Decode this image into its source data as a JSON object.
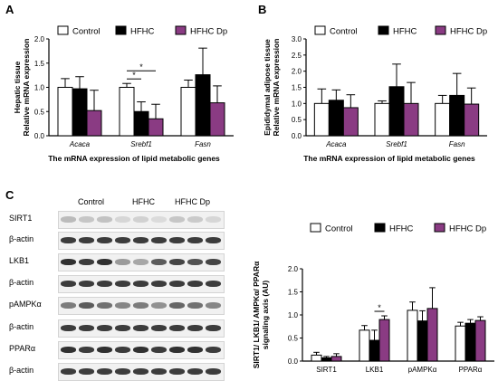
{
  "colors": {
    "control": "#ffffff",
    "hfhc": "#000000",
    "hfhc_dp": "#8a3b83",
    "blot_band": "#1c1c1c"
  },
  "panel_letters": {
    "a": "A",
    "b": "B",
    "c": "C"
  },
  "chart_data": [
    {
      "type": "bar",
      "panel": "A",
      "ylabel_line1": "Hepatic tissue",
      "ylabel_line2": "Relative mRNA expression",
      "xlabel": "The mRNA expression of lipid metabolic genes",
      "categories": [
        "Acaca",
        "Srebf1",
        "Fasn"
      ],
      "ylim": [
        0,
        2.0
      ],
      "yticks": [
        "0.0",
        "0.5",
        "1.0",
        "1.5",
        "2.0"
      ],
      "series": [
        {
          "name": "Control",
          "values": [
            1.0,
            1.0,
            1.0
          ],
          "errors": [
            0.18,
            0.08,
            0.15
          ]
        },
        {
          "name": "HFHC",
          "values": [
            0.97,
            0.5,
            1.26
          ],
          "errors": [
            0.25,
            0.2,
            0.55
          ]
        },
        {
          "name": "HFHC Dp",
          "values": [
            0.52,
            0.35,
            0.68
          ],
          "errors": [
            0.42,
            0.3,
            0.35
          ]
        }
      ],
      "significance": [
        {
          "category": "Srebf1",
          "from": "Control",
          "to": "HFHC",
          "label": "*"
        },
        {
          "category": "Srebf1",
          "from": "Control",
          "to": "HFHC Dp",
          "label": "*"
        }
      ]
    },
    {
      "type": "bar",
      "panel": "B",
      "ylabel_line1": "Epididymal adipose tissue",
      "ylabel_line2": "Relative mRNA expression",
      "xlabel": "The mRNA expression of lipid metabolic genes",
      "categories": [
        "Acaca",
        "Srebf1",
        "Fasn"
      ],
      "ylim": [
        0,
        3.0
      ],
      "yticks": [
        "0.0",
        "0.5",
        "1.0",
        "1.5",
        "2.0",
        "2.5",
        "3.0"
      ],
      "series": [
        {
          "name": "Control",
          "values": [
            1.0,
            1.0,
            1.0
          ],
          "errors": [
            0.45,
            0.08,
            0.25
          ]
        },
        {
          "name": "HFHC",
          "values": [
            1.1,
            1.52,
            1.25
          ],
          "errors": [
            0.32,
            0.7,
            0.68
          ]
        },
        {
          "name": "HFHC Dp",
          "values": [
            0.87,
            1.0,
            0.98
          ],
          "errors": [
            0.4,
            0.65,
            0.5
          ]
        }
      ],
      "significance": []
    },
    {
      "type": "bar",
      "panel": "C",
      "ylabel_line1": "SIRT1/ LKB1/ AMPKα/ PPARα",
      "ylabel_line2": "signaling axis (AU)",
      "xlabel": "",
      "categories": [
        "SIRT1",
        "LKB1",
        "pAMPKα",
        "PPARα"
      ],
      "ylim": [
        0,
        2.0
      ],
      "yticks": [
        "0.0",
        "0.5",
        "1.0",
        "1.5",
        "2.0"
      ],
      "series": [
        {
          "name": "Control",
          "values": [
            0.13,
            0.67,
            1.1,
            0.76
          ],
          "errors": [
            0.06,
            0.1,
            0.18,
            0.08
          ]
        },
        {
          "name": "HFHC",
          "values": [
            0.07,
            0.45,
            0.87,
            0.82
          ],
          "errors": [
            0.03,
            0.22,
            0.22,
            0.08
          ]
        },
        {
          "name": "HFHC Dp",
          "values": [
            0.1,
            0.9,
            1.14,
            0.88
          ],
          "errors": [
            0.06,
            0.08,
            0.45,
            0.08
          ]
        }
      ],
      "significance": [
        {
          "category": "LKB1",
          "from": "HFHC",
          "to": "HFHC Dp",
          "label": "*"
        }
      ]
    }
  ],
  "western_blot": {
    "group_labels": [
      "Control",
      "HFHC",
      "HFHC Dp"
    ],
    "rows": [
      {
        "label": "SIRT1",
        "intensities": [
          0.25,
          0.2,
          0.22,
          0.12,
          0.15,
          0.1,
          0.2,
          0.18,
          0.12
        ]
      },
      {
        "label": "β-actin",
        "intensities": [
          0.85,
          0.85,
          0.85,
          0.85,
          0.85,
          0.85,
          0.85,
          0.85,
          0.85
        ]
      },
      {
        "label": "LKB1",
        "intensities": [
          0.9,
          0.85,
          0.9,
          0.4,
          0.35,
          0.7,
          0.8,
          0.75,
          0.8
        ]
      },
      {
        "label": "β-actin",
        "intensities": [
          0.85,
          0.85,
          0.85,
          0.85,
          0.85,
          0.85,
          0.85,
          0.85,
          0.85
        ]
      },
      {
        "label": "pAMPKα",
        "intensities": [
          0.55,
          0.7,
          0.6,
          0.5,
          0.55,
          0.45,
          0.65,
          0.6,
          0.5
        ]
      },
      {
        "label": "β-actin",
        "intensities": [
          0.85,
          0.85,
          0.85,
          0.85,
          0.85,
          0.85,
          0.85,
          0.85,
          0.85
        ]
      },
      {
        "label": "PPARα",
        "intensities": [
          0.9,
          0.85,
          0.9,
          0.85,
          0.9,
          0.85,
          0.9,
          0.9,
          0.85
        ]
      },
      {
        "label": "β-actin",
        "intensities": [
          0.85,
          0.85,
          0.85,
          0.85,
          0.85,
          0.85,
          0.85,
          0.85,
          0.85
        ]
      }
    ]
  }
}
